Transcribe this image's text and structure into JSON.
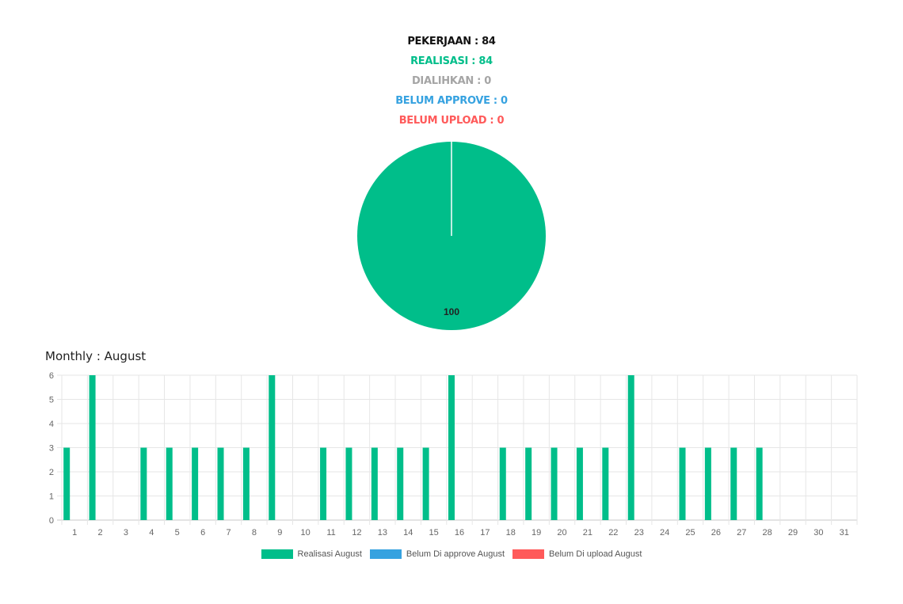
{
  "summary": {
    "pekerjaan": "PEKERJAAN : 84",
    "realisasi": "REALISASI : 84",
    "dialihkan": "DIALIHKAN : 0",
    "belum_approve": "BELUM APPROVE : 0",
    "belum_upload": "BELUM UPLOAD : 0"
  },
  "colors": {
    "black": "#111111",
    "green": "#00be8a",
    "gray": "#a5a5a5",
    "blue": "#36a2e0",
    "red": "#ff5a5a"
  },
  "monthly_title": "Monthly : August",
  "chart_data": [
    {
      "type": "pie",
      "slices": [
        {
          "label": "",
          "value": 100,
          "color": "#00be8a"
        }
      ],
      "data_labels": [
        "100"
      ]
    },
    {
      "type": "bar",
      "categories": [
        "1",
        "2",
        "3",
        "4",
        "5",
        "6",
        "7",
        "8",
        "9",
        "10",
        "11",
        "12",
        "13",
        "14",
        "15",
        "16",
        "17",
        "18",
        "19",
        "20",
        "21",
        "22",
        "23",
        "24",
        "25",
        "26",
        "27",
        "28",
        "29",
        "30",
        "31"
      ],
      "series": [
        {
          "name": "Realisasi August",
          "color": "#00be8a",
          "values": [
            3,
            6,
            0,
            3,
            3,
            3,
            3,
            3,
            6,
            0,
            3,
            3,
            3,
            3,
            3,
            6,
            0,
            3,
            3,
            3,
            3,
            3,
            6,
            0,
            3,
            3,
            3,
            3,
            0,
            0,
            0
          ]
        },
        {
          "name": "Belum Di approve August",
          "color": "#36a2e0",
          "values": [
            0,
            0,
            0,
            0,
            0,
            0,
            0,
            0,
            0,
            0,
            0,
            0,
            0,
            0,
            0,
            0,
            0,
            0,
            0,
            0,
            0,
            0,
            0,
            0,
            0,
            0,
            0,
            0,
            0,
            0,
            0
          ]
        },
        {
          "name": "Belum Di upload August",
          "color": "#ff5a5a",
          "values": [
            0,
            0,
            0,
            0,
            0,
            0,
            0,
            0,
            0,
            0,
            0,
            0,
            0,
            0,
            0,
            0,
            0,
            0,
            0,
            0,
            0,
            0,
            0,
            0,
            0,
            0,
            0,
            0,
            0,
            0,
            0
          ]
        }
      ],
      "ylim": [
        0,
        6
      ],
      "yticks": [
        "0",
        "1",
        "2",
        "3",
        "4",
        "5",
        "6"
      ],
      "grid": true,
      "legend_position": "bottom"
    }
  ]
}
